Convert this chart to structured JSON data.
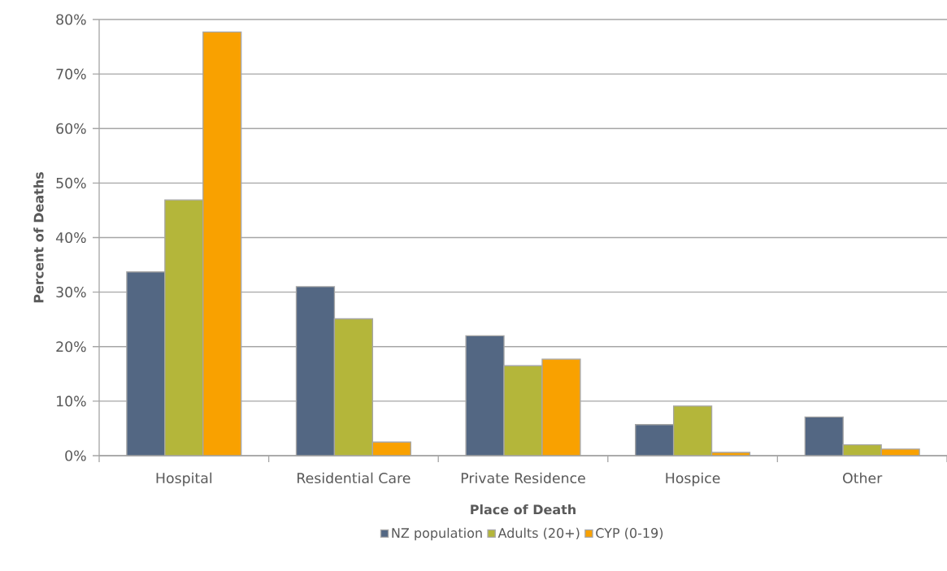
{
  "chart_data": {
    "type": "bar",
    "xlabel": "Place of Death",
    "ylabel": "Percent of Deaths",
    "categories": [
      "Hospital",
      "Residential Care",
      "Private Residence",
      "Hospice",
      "Other"
    ],
    "series": [
      {
        "name": "NZ population",
        "color": "#536783",
        "values": [
          33.7,
          31.0,
          22.0,
          5.7,
          7.1
        ]
      },
      {
        "name": "Adults (20+)",
        "color": "#b4b63a",
        "values": [
          46.9,
          25.1,
          16.5,
          9.1,
          2.0
        ]
      },
      {
        "name": "CYP (0-19)",
        "color": "#f9a100",
        "values": [
          77.7,
          2.5,
          17.7,
          0.6,
          1.2
        ]
      }
    ],
    "ylim": [
      0,
      80
    ],
    "yticks": [
      {
        "value": 0,
        "label": "0%"
      },
      {
        "value": 10,
        "label": "10%"
      },
      {
        "value": 20,
        "label": "20%"
      },
      {
        "value": 30,
        "label": "30%"
      },
      {
        "value": 40,
        "label": "40%"
      },
      {
        "value": 50,
        "label": "50%"
      },
      {
        "value": 60,
        "label": "60%"
      },
      {
        "value": 70,
        "label": "70%"
      },
      {
        "value": 80,
        "label": "80%"
      }
    ],
    "grid": "y",
    "legend": "bottom"
  }
}
